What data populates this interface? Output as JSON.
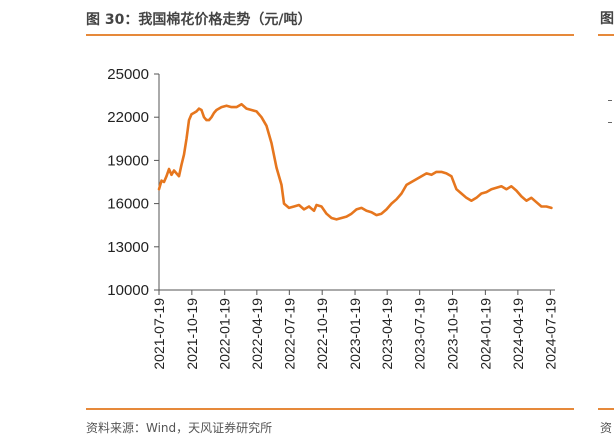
{
  "panel": {
    "title": "图 30：我国棉花价格走势（元/吨）",
    "source": "资料来源：Wind，天风证券研究所"
  },
  "right_panel": {
    "title_fragment": "图",
    "source_fragment": "资"
  },
  "colors": {
    "accent": "#e6893a",
    "line": "#e6761e"
  },
  "chart_data": {
    "type": "line",
    "title": "我国棉花价格走势（元/吨）",
    "xlabel": "",
    "ylabel": "",
    "ylim": [
      10000,
      25000
    ],
    "yticks": [
      10000,
      13000,
      16000,
      19000,
      22000,
      25000
    ],
    "xlim": [
      "2021-07-19",
      "2024-08-01"
    ],
    "xticks": [
      "2021-07-19",
      "2021-10-19",
      "2022-01-19",
      "2022-04-19",
      "2022-07-19",
      "2022-10-19",
      "2023-01-19",
      "2023-04-19",
      "2023-07-19",
      "2023-10-19",
      "2024-01-19",
      "2024-04-19",
      "2024-07-19"
    ],
    "grid": false,
    "legend": "none",
    "series": [
      {
        "points": [
          [
            "2021-07-19",
            17000
          ],
          [
            "2021-07-26",
            17600
          ],
          [
            "2021-08-02",
            17500
          ],
          [
            "2021-08-09",
            17900
          ],
          [
            "2021-08-16",
            18400
          ],
          [
            "2021-08-23",
            18000
          ],
          [
            "2021-08-30",
            18300
          ],
          [
            "2021-09-06",
            18100
          ],
          [
            "2021-09-13",
            17900
          ],
          [
            "2021-09-20",
            18700
          ],
          [
            "2021-09-27",
            19400
          ],
          [
            "2021-10-04",
            20500
          ],
          [
            "2021-10-11",
            21800
          ],
          [
            "2021-10-18",
            22200
          ],
          [
            "2021-10-25",
            22300
          ],
          [
            "2021-11-01",
            22400
          ],
          [
            "2021-11-08",
            22600
          ],
          [
            "2021-11-15",
            22500
          ],
          [
            "2021-11-22",
            22000
          ],
          [
            "2021-11-29",
            21800
          ],
          [
            "2021-12-06",
            21800
          ],
          [
            "2021-12-13",
            22000
          ],
          [
            "2021-12-20",
            22300
          ],
          [
            "2021-12-27",
            22500
          ],
          [
            "2022-01-10",
            22700
          ],
          [
            "2022-01-24",
            22800
          ],
          [
            "2022-02-07",
            22700
          ],
          [
            "2022-02-21",
            22700
          ],
          [
            "2022-03-07",
            22900
          ],
          [
            "2022-03-21",
            22600
          ],
          [
            "2022-04-04",
            22500
          ],
          [
            "2022-04-18",
            22400
          ],
          [
            "2022-05-02",
            22000
          ],
          [
            "2022-05-16",
            21400
          ],
          [
            "2022-05-30",
            20200
          ],
          [
            "2022-06-13",
            18500
          ],
          [
            "2022-06-27",
            17300
          ],
          [
            "2022-07-04",
            16000
          ],
          [
            "2022-07-18",
            15700
          ],
          [
            "2022-08-01",
            15800
          ],
          [
            "2022-08-15",
            15900
          ],
          [
            "2022-08-29",
            15600
          ],
          [
            "2022-09-12",
            15800
          ],
          [
            "2022-09-26",
            15500
          ],
          [
            "2022-10-03",
            15900
          ],
          [
            "2022-10-17",
            15800
          ],
          [
            "2022-10-31",
            15300
          ],
          [
            "2022-11-14",
            15000
          ],
          [
            "2022-11-28",
            14900
          ],
          [
            "2022-12-12",
            15000
          ],
          [
            "2022-12-26",
            15100
          ],
          [
            "2023-01-09",
            15300
          ],
          [
            "2023-01-23",
            15600
          ],
          [
            "2023-02-06",
            15700
          ],
          [
            "2023-02-20",
            15500
          ],
          [
            "2023-03-06",
            15400
          ],
          [
            "2023-03-20",
            15200
          ],
          [
            "2023-04-03",
            15300
          ],
          [
            "2023-04-17",
            15600
          ],
          [
            "2023-05-01",
            16000
          ],
          [
            "2023-05-15",
            16300
          ],
          [
            "2023-05-29",
            16700
          ],
          [
            "2023-06-12",
            17300
          ],
          [
            "2023-06-26",
            17500
          ],
          [
            "2023-07-10",
            17700
          ],
          [
            "2023-07-24",
            17900
          ],
          [
            "2023-08-07",
            18100
          ],
          [
            "2023-08-21",
            18000
          ],
          [
            "2023-09-04",
            18200
          ],
          [
            "2023-09-18",
            18200
          ],
          [
            "2023-10-02",
            18100
          ],
          [
            "2023-10-16",
            17900
          ],
          [
            "2023-10-30",
            17000
          ],
          [
            "2023-11-13",
            16700
          ],
          [
            "2023-11-27",
            16400
          ],
          [
            "2023-12-11",
            16200
          ],
          [
            "2023-12-25",
            16400
          ],
          [
            "2024-01-08",
            16700
          ],
          [
            "2024-01-22",
            16800
          ],
          [
            "2024-02-05",
            17000
          ],
          [
            "2024-02-19",
            17100
          ],
          [
            "2024-03-04",
            17200
          ],
          [
            "2024-03-18",
            17000
          ],
          [
            "2024-04-01",
            17200
          ],
          [
            "2024-04-15",
            16900
          ],
          [
            "2024-04-29",
            16500
          ],
          [
            "2024-05-13",
            16200
          ],
          [
            "2024-05-27",
            16400
          ],
          [
            "2024-06-10",
            16100
          ],
          [
            "2024-06-24",
            15800
          ],
          [
            "2024-07-08",
            15800
          ],
          [
            "2024-07-22",
            15700
          ]
        ]
      }
    ]
  }
}
